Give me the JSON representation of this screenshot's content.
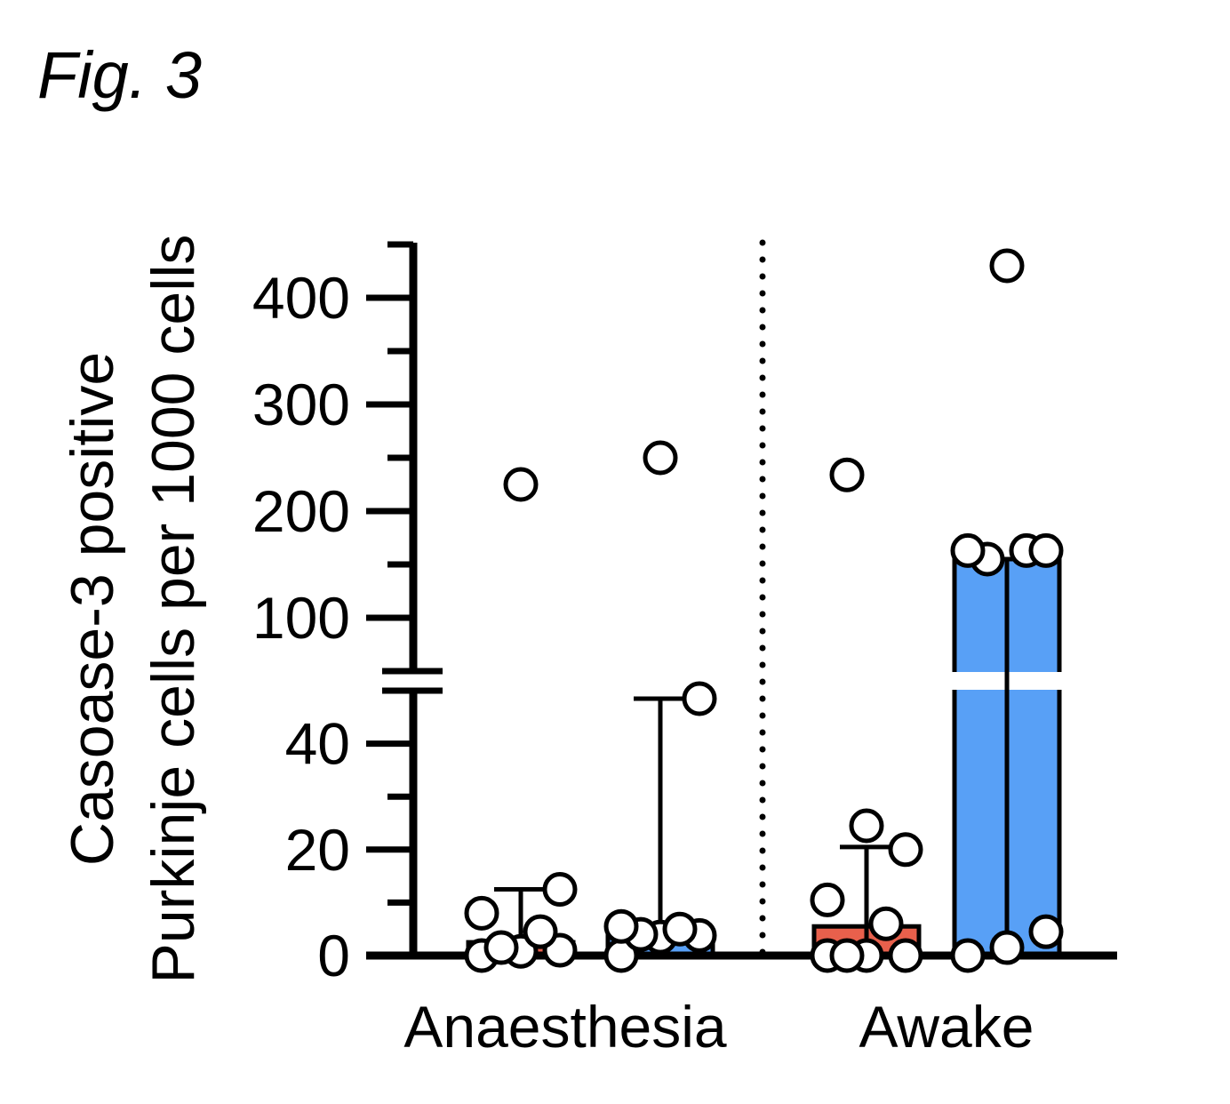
{
  "figure_label": "Fig. 3",
  "chart_data": {
    "type": "bar",
    "title": "",
    "ylabel_lines": [
      "Casoase-3 positive",
      "Purkinje cells per 1000 cells"
    ],
    "xlabel": "",
    "groups": [
      "Anaesthesia",
      "Awake"
    ],
    "y_axis": {
      "broken": true,
      "lower_segment": {
        "range": [
          0,
          50
        ],
        "ticks": [
          0,
          20,
          40
        ],
        "minor_step": 10
      },
      "upper_segment": {
        "range": [
          50,
          450
        ],
        "ticks": [
          100,
          200,
          300,
          400
        ],
        "minor_step": 50
      }
    },
    "separator": "dotted vertical line between groups",
    "colors": {
      "red": "#e8604c",
      "blue": "#58a0f6"
    },
    "bars": [
      {
        "group": "Anaesthesia",
        "color": "#e8604c",
        "value": 2.5,
        "whisker_top": 12.5,
        "points": [
          0,
          0.8,
          1.0,
          1.5,
          4.5,
          8.0,
          12.5,
          225
        ]
      },
      {
        "group": "Anaesthesia",
        "color": "#58a0f6",
        "value": 4.5,
        "whisker_top": 48.5,
        "points": [
          0,
          3.5,
          3.8,
          4.0,
          5.0,
          5.5,
          48.5,
          250
        ]
      },
      {
        "group": "Awake",
        "color": "#e8604c",
        "value": 5.5,
        "whisker_top": 20.5,
        "points": [
          0,
          0,
          0,
          0,
          6.0,
          10.5,
          20.0,
          24.5,
          234
        ]
      },
      {
        "group": "Awake",
        "color": "#58a0f6",
        "value": 155,
        "whisker_top": 155,
        "points": [
          0,
          1.5,
          4.5,
          155,
          163,
          163,
          163,
          430
        ]
      }
    ]
  }
}
